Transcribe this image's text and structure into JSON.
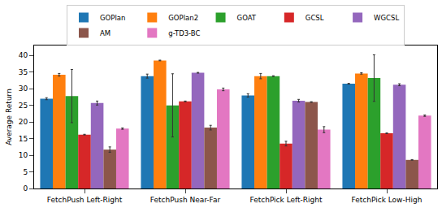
{
  "chart_data": {
    "type": "bar",
    "y_label": "Average Return",
    "categories": [
      "FetchPush Left-Right",
      "FetchPush Near-Far",
      "FetchPick Left-Right",
      "FetchPick Low-High"
    ],
    "series": [
      {
        "name": "GOPlan",
        "color": "#1f77b4",
        "values": [
          27.0,
          33.8,
          28.0,
          31.5
        ],
        "errors": [
          0.3,
          0.6,
          0.5,
          0.1
        ]
      },
      {
        "name": "GOPlan2",
        "color": "#ff7f0e",
        "values": [
          34.2,
          38.5,
          33.8,
          34.6
        ],
        "errors": [
          0.4,
          0.1,
          0.8,
          0.2
        ]
      },
      {
        "name": "GOAT",
        "color": "#2ca02c",
        "values": [
          27.8,
          25.0,
          33.8,
          33.2
        ],
        "errors": [
          8.0,
          9.5,
          0.1,
          7.0
        ]
      },
      {
        "name": "GCSL",
        "color": "#d62728",
        "values": [
          16.2,
          26.2,
          13.5,
          16.6
        ],
        "errors": [
          0.1,
          0.1,
          0.7,
          0.1
        ]
      },
      {
        "name": "WGCSL",
        "color": "#9467bd",
        "values": [
          25.7,
          34.8,
          26.4,
          31.2
        ],
        "errors": [
          0.6,
          0.1,
          0.4,
          0.3
        ]
      },
      {
        "name": "AM",
        "color": "#8c564b",
        "values": [
          11.7,
          18.3,
          26.0,
          8.6
        ],
        "errors": [
          0.8,
          0.7,
          0.1,
          0.1
        ]
      },
      {
        "name": "g-TD3-BC",
        "color": "#e377c2",
        "values": [
          18.0,
          29.8,
          17.7,
          21.9
        ],
        "errors": [
          0.2,
          0.4,
          0.9,
          0.2
        ]
      }
    ],
    "ylim": [
      0,
      43
    ],
    "yticks": [
      0,
      5,
      10,
      15,
      20,
      25,
      30,
      35,
      40
    ],
    "legend": "top",
    "grid": false
  }
}
